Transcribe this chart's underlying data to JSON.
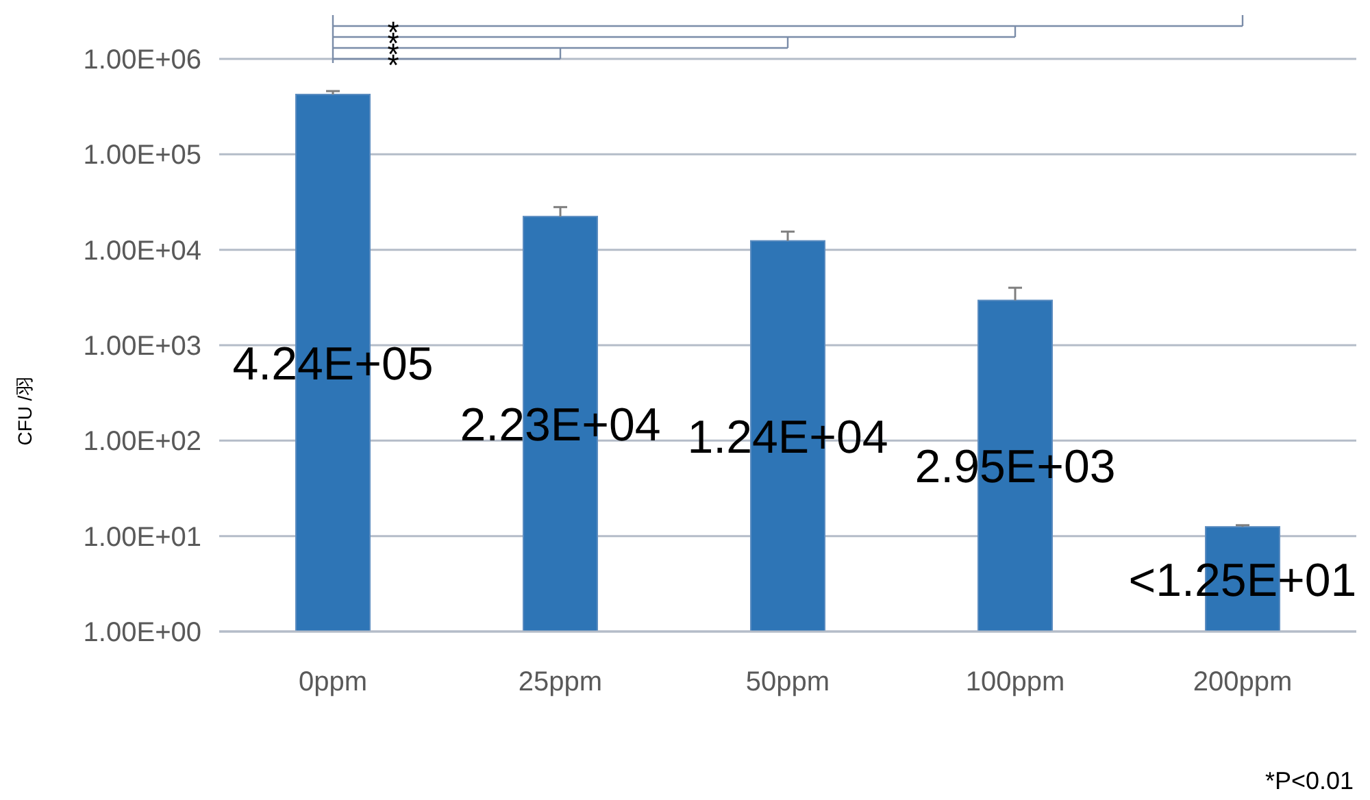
{
  "chart_data": {
    "type": "bar",
    "ylabel": "CFU /羽",
    "categories": [
      "0ppm",
      "25ppm",
      "50ppm",
      "100ppm",
      "200ppm"
    ],
    "values": [
      424000,
      22300,
      12400,
      2950,
      12.5
    ],
    "value_labels": [
      "4.24E+05",
      "2.23E+04",
      "1.24E+04",
      "2.95E+03",
      "<1.25E+01"
    ],
    "errors": [
      [
        424000,
        460000
      ],
      [
        22300,
        28000
      ],
      [
        12400,
        15500
      ],
      [
        2950,
        4000
      ],
      [
        12.5,
        13
      ]
    ],
    "color": "#2e75b6",
    "log": true,
    "ylim": [
      1,
      1000000
    ],
    "yticks": [
      {
        "value": 1,
        "label": "1.00E+00"
      },
      {
        "value": 10,
        "label": "1.00E+01"
      },
      {
        "value": 100,
        "label": "1.00E+02"
      },
      {
        "value": 1000,
        "label": "1.00E+03"
      },
      {
        "value": 10000,
        "label": "1.00E+04"
      },
      {
        "value": 100000,
        "label": "1.00E+05"
      },
      {
        "value": 1000000,
        "label": "1.00E+06"
      }
    ],
    "grid": "y",
    "annotations": [
      "*",
      "*",
      "*",
      "*",
      "*P<0.01"
    ]
  }
}
